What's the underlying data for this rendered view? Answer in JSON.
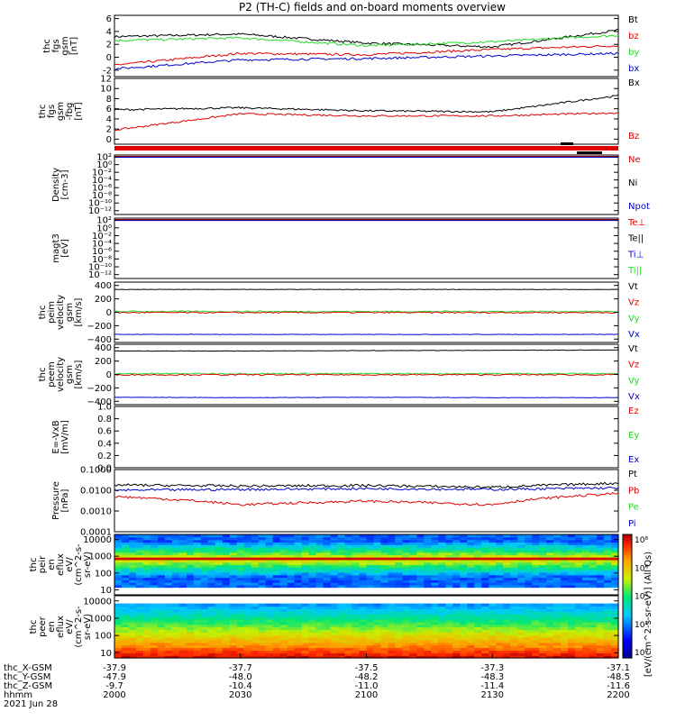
{
  "title": "P2 (TH-C) fields and on-board moments overview",
  "colors": {
    "black": "#000000",
    "red": "#e00000",
    "green": "#22dd22",
    "blue": "#0000d0"
  },
  "panels": [
    {
      "id": "fgs1",
      "ylabel": [
        "thc",
        "fgs",
        "gsm",
        "[nT]"
      ],
      "yrange": [
        -3,
        6.5
      ],
      "ticks": [
        "6",
        "4",
        "2",
        "0",
        "-2"
      ],
      "tickvals": [
        6,
        4,
        2,
        0,
        -2
      ],
      "log": false,
      "legend": [
        {
          "text": "Bt",
          "color": "black"
        },
        {
          "text": "bz",
          "color": "red"
        },
        {
          "text": "by",
          "color": "green"
        },
        {
          "text": "bx",
          "color": "blue"
        }
      ]
    },
    {
      "id": "fgs2",
      "ylabel": [
        "thc",
        "fgs",
        "gsm",
        "-fbg",
        "[nT]"
      ],
      "yrange": [
        -1,
        12
      ],
      "ticks": [
        "12",
        "10",
        "8",
        "6",
        "4",
        "2",
        "0"
      ],
      "tickvals": [
        12,
        10,
        8,
        6,
        4,
        2,
        0
      ],
      "log": false,
      "legend": [
        {
          "text": "Bx",
          "color": "black"
        },
        {
          "text": "Bz",
          "color": "red"
        }
      ]
    },
    {
      "id": "density",
      "ylabel": [
        "Density",
        "[cm-3]"
      ],
      "yrange": [
        -13,
        2.5
      ],
      "ticks": [
        "10²",
        "10⁰",
        "10⁻²",
        "10⁻⁴",
        "10⁻⁶",
        "10⁻⁸",
        "10⁻¹⁰",
        "10⁻¹²"
      ],
      "tickvals": [
        2,
        0,
        -2,
        -4,
        -6,
        -8,
        -10,
        -12
      ],
      "log": true,
      "legend": [
        {
          "text": "Ne",
          "color": "red"
        },
        {
          "text": "Ni",
          "color": "black"
        },
        {
          "text": "Npot",
          "color": "blue"
        }
      ]
    },
    {
      "id": "temp",
      "ylabel": [
        "magt3",
        "[eV]"
      ],
      "yrange": [
        -13,
        2.5
      ],
      "ticks": [
        "10²",
        "10⁰",
        "10⁻²",
        "10⁻⁴",
        "10⁻⁶",
        "10⁻⁸",
        "10⁻¹⁰",
        "10⁻¹²"
      ],
      "tickvals": [
        2,
        0,
        -2,
        -4,
        -6,
        -8,
        -10,
        -12
      ],
      "log": true,
      "legend": [
        {
          "text": "Te⊥",
          "color": "red"
        },
        {
          "text": "Te||",
          "color": "black"
        },
        {
          "text": "Ti⊥",
          "color": "blue"
        },
        {
          "text": "Ti||",
          "color": "green"
        }
      ]
    },
    {
      "id": "peim",
      "ylabel": [
        "thc",
        "peim",
        "velocity",
        "gsm",
        "[km/s]"
      ],
      "yrange": [
        -450,
        450
      ],
      "ticks": [
        "400",
        "200",
        "0",
        "−200",
        "−400"
      ],
      "tickvals": [
        400,
        200,
        0,
        -200,
        -400
      ],
      "log": false,
      "legend": [
        {
          "text": "Vt",
          "color": "black"
        },
        {
          "text": "Vz",
          "color": "red"
        },
        {
          "text": "Vy",
          "color": "green"
        },
        {
          "text": "Vx",
          "color": "blue"
        }
      ]
    },
    {
      "id": "peem",
      "ylabel": [
        "thc",
        "peem",
        "velocity",
        "gsm",
        "[km/s]"
      ],
      "yrange": [
        -450,
        450
      ],
      "ticks": [
        "400",
        "200",
        "0",
        "−200",
        "−400"
      ],
      "tickvals": [
        400,
        200,
        0,
        -200,
        -400
      ],
      "log": false,
      "legend": [
        {
          "text": "Vt",
          "color": "black"
        },
        {
          "text": "Vz",
          "color": "red"
        },
        {
          "text": "Vy",
          "color": "green"
        },
        {
          "text": "Vx",
          "color": "blue"
        }
      ]
    },
    {
      "id": "efield",
      "ylabel": [
        "E=-VxB",
        "[mV/m]"
      ],
      "yrange": [
        0,
        1
      ],
      "ticks": [
        "1.0",
        "0.8",
        "0.6",
        "0.4",
        "0.2",
        "0.0"
      ],
      "tickvals": [
        1,
        0.8,
        0.6,
        0.4,
        0.2,
        0
      ],
      "log": false,
      "legend": [
        {
          "text": "Ez",
          "color": "red"
        },
        {
          "text": "Ey",
          "color": "green"
        },
        {
          "text": "Ex",
          "color": "blue"
        }
      ]
    },
    {
      "id": "pressure",
      "ylabel": [
        "Pressure",
        "[nPa]"
      ],
      "yrange": [
        -4,
        -1
      ],
      "ticks": [
        "0.1000",
        "0.0100",
        "0.0010",
        "0.0001"
      ],
      "tickvals": [
        -1,
        -2,
        -3,
        -4
      ],
      "log": true,
      "legend": [
        {
          "text": "Pt",
          "color": "black"
        },
        {
          "text": "Pb",
          "color": "red"
        },
        {
          "text": "Pe",
          "color": "green"
        },
        {
          "text": "Pi",
          "color": "blue"
        }
      ]
    },
    {
      "id": "peir",
      "ylabel": [
        "thc",
        "peir",
        "en",
        "eflux",
        "eV/",
        "(cm^2-s-",
        "sr-eV)"
      ],
      "yrange": [
        0.7,
        4.3
      ],
      "ticks": [
        "10000",
        "1000",
        "100",
        "10"
      ],
      "tickvals": [
        4,
        3,
        2,
        1
      ],
      "log": true,
      "legend": []
    },
    {
      "id": "peer",
      "ylabel": [
        "thc",
        "peer",
        "en",
        "eflux",
        "eV/",
        "(cm^2-s-",
        "sr-eV)"
      ],
      "yrange": [
        0.7,
        4.3
      ],
      "ticks": [
        "10000",
        "1000",
        "100",
        "10"
      ],
      "tickvals": [
        4,
        3,
        2,
        1
      ],
      "log": true,
      "legend": []
    }
  ],
  "colorbar": {
    "label": "[eV/(cm^2-s-sr-eV)] (All Qs)",
    "ticks": [
      "10⁸",
      "10⁶",
      "10⁴",
      "10²",
      "10⁰"
    ]
  },
  "xaxis": {
    "rows": [
      {
        "label": "thc_X-GSM",
        "values": [
          "-37.9",
          "-37.7",
          "-37.5",
          "-37.3",
          "-37.1"
        ]
      },
      {
        "label": "thc_Y-GSM",
        "values": [
          "-47.9",
          "-48.0",
          "-48.2",
          "-48.3",
          "-48.5"
        ]
      },
      {
        "label": "thc_Z-GSM",
        "values": [
          "-9.7",
          "-10.4",
          "-11.0",
          "-11.4",
          "-11.6"
        ]
      },
      {
        "label": "hhmm",
        "values": [
          "2000",
          "2030",
          "2100",
          "2130",
          "2200"
        ]
      }
    ],
    "date": "2021 Jun 28"
  },
  "chart_data": {
    "type": "line",
    "title": "P2 (TH-C) fields and on-board moments overview",
    "x": [
      "2000",
      "2030",
      "2100",
      "2130",
      "2200"
    ],
    "xlabel": "hhmm",
    "series": [
      {
        "panel": "fgs1",
        "name": "Bt",
        "values": [
          3.2,
          3.6,
          2.2,
          1.6,
          4.2
        ]
      },
      {
        "panel": "fgs1",
        "name": "bz",
        "values": [
          -1.2,
          0.6,
          0.4,
          1.2,
          1.8
        ]
      },
      {
        "panel": "fgs1",
        "name": "by",
        "values": [
          2.6,
          3.0,
          1.8,
          2.4,
          3.4
        ]
      },
      {
        "panel": "fgs1",
        "name": "bx",
        "values": [
          -1.8,
          -0.4,
          -0.2,
          0.2,
          0.6
        ]
      },
      {
        "panel": "fgs2",
        "name": "Bx",
        "values": [
          5.8,
          6.2,
          5.6,
          5.4,
          8.6
        ]
      },
      {
        "panel": "fgs2",
        "name": "Bz",
        "values": [
          1.8,
          5.0,
          4.6,
          4.6,
          5.2
        ]
      },
      {
        "panel": "peim",
        "name": "Vt",
        "values": [
          340,
          340,
          340,
          340,
          340
        ]
      },
      {
        "panel": "peim",
        "name": "Vx",
        "values": [
          -330,
          -330,
          -330,
          -330,
          -330
        ]
      },
      {
        "panel": "peem",
        "name": "Vt",
        "values": [
          350,
          350,
          355,
          360,
          365
        ]
      },
      {
        "panel": "peem",
        "name": "Vx",
        "values": [
          -340,
          -345,
          -340,
          -345,
          -345
        ]
      },
      {
        "panel": "pressure",
        "name": "Pt",
        "values": [
          0.018,
          0.016,
          0.017,
          0.014,
          0.022
        ]
      },
      {
        "panel": "pressure",
        "name": "Pb",
        "values": [
          0.005,
          0.002,
          0.003,
          0.002,
          0.007
        ]
      },
      {
        "panel": "pressure",
        "name": "Pi",
        "values": [
          0.01,
          0.011,
          0.012,
          0.011,
          0.013
        ]
      }
    ]
  }
}
